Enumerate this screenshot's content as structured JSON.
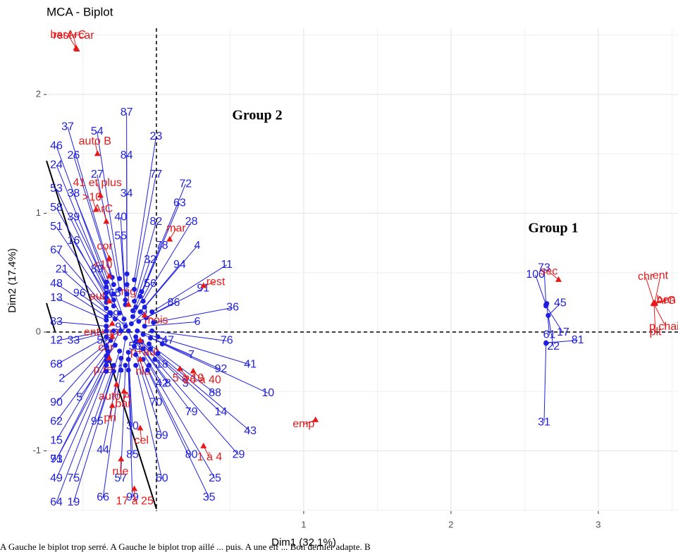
{
  "chart_data": {
    "type": "scatter",
    "title": "MCA - Biplot",
    "x_label": "Dim1 (32.1%)",
    "y_label": "Dim2 (17.4%)",
    "annotations": [
      "Group 2",
      "Group 1"
    ],
    "caption": "A Gauche le biplot trop serré. A Gauche le biplot trop aillé ... puis. A une elf ... Bon dernier adapte. B",
    "xlim": [
      -0.746,
      3.541
    ],
    "ylim": [
      -1.507,
      2.558
    ],
    "xticks": [
      1,
      2,
      3
    ],
    "yticks": [
      -1,
      0,
      1,
      2
    ],
    "minor_xticks": [
      -0.5,
      0.5,
      1.5,
      2.5,
      3.5
    ],
    "minor_yticks": [
      -1.5,
      -0.5,
      0.5,
      1.5,
      2.5
    ],
    "grid": true,
    "reference_lines": {
      "x": 0,
      "y": 0
    },
    "series": [
      {
        "color": "#1f1fdf",
        "marker": "circle",
        "labels": [
          "87",
          "37",
          "54",
          "23",
          "46",
          "26",
          "84",
          "27",
          "77",
          "72",
          "24",
          "53",
          "38",
          "34",
          "63",
          "58",
          "39",
          "40",
          "82",
          "28",
          "51",
          "16",
          "55",
          "78",
          "4",
          "67",
          "21",
          "32",
          "89",
          "94",
          "11",
          "56",
          "91",
          "48",
          "96",
          "65",
          "86",
          "36",
          "13",
          "9",
          "6",
          "83",
          "69",
          "12",
          "33",
          "52",
          "50",
          "47",
          "76",
          "68",
          "7",
          "41",
          "92",
          "18",
          "1",
          "3",
          "2",
          "88",
          "10",
          "90",
          "42",
          "8",
          "5",
          "70",
          "14",
          "79",
          "62",
          "95",
          "30",
          "59",
          "43",
          "15",
          "97",
          "80",
          "71",
          "44",
          "29",
          "93",
          "85",
          "49",
          "75",
          "57",
          "60",
          "25",
          "64",
          "19",
          "66",
          "99",
          "35",
          "73",
          "100",
          "61",
          "45",
          "17",
          "22",
          "31",
          "81"
        ],
        "x": [
          -0.2,
          -0.3,
          -0.25,
          -0.15,
          -0.34,
          -0.29,
          -0.2,
          -0.25,
          -0.15,
          -0.1,
          -0.34,
          -0.34,
          -0.29,
          -0.2,
          -0.11,
          -0.34,
          -0.29,
          -0.21,
          -0.15,
          -0.09,
          -0.34,
          -0.29,
          -0.21,
          -0.14,
          -0.08,
          -0.34,
          -0.31,
          -0.16,
          -0.25,
          -0.11,
          -0.03,
          -0.16,
          -0.07,
          -0.34,
          -0.28,
          -0.22,
          -0.12,
          -0.02,
          -0.34,
          -0.17,
          -0.08,
          -0.34,
          -0.21,
          -0.34,
          -0.29,
          -0.24,
          -0.19,
          -0.13,
          -0.03,
          -0.34,
          -0.09,
          0.01,
          -0.04,
          -0.14,
          -0.21,
          -0.1,
          -0.31,
          -0.05,
          0.04,
          -0.34,
          -0.14,
          -0.13,
          -0.28,
          -0.15,
          -0.04,
          -0.09,
          -0.33,
          -0.25,
          -0.19,
          -0.14,
          0.01,
          -0.34,
          -0.33,
          -0.09,
          -0.34,
          -0.24,
          -0.01,
          -0.32,
          -0.19,
          -0.34,
          -0.29,
          -0.21,
          -0.14,
          -0.05,
          -0.34,
          -0.29,
          -0.24,
          -0.19,
          -0.06,
          2.645,
          2.645,
          2.65,
          2.66,
          2.645,
          2.66,
          2.645,
          2.645
        ],
        "values": [
          0.49,
          0.46,
          0.45,
          0.44,
          0.42,
          0.4,
          0.4,
          0.36,
          0.36,
          0.34,
          0.38,
          0.33,
          0.32,
          0.32,
          0.3,
          0.29,
          0.27,
          0.27,
          0.26,
          0.26,
          0.25,
          0.22,
          0.23,
          0.21,
          0.21,
          0.2,
          0.16,
          0.18,
          0.16,
          0.17,
          0.17,
          0.13,
          0.12,
          0.13,
          0.11,
          0.11,
          0.09,
          0.08,
          0.1,
          0.07,
          0.05,
          0.05,
          0.05,
          0.01,
          0.01,
          0.01,
          0.01,
          0.01,
          0.01,
          -0.04,
          -0.02,
          -0.04,
          -0.05,
          -0.04,
          -0.05,
          -0.08,
          -0.07,
          -0.1,
          -0.1,
          -0.12,
          -0.08,
          -0.08,
          -0.11,
          -0.12,
          -0.14,
          -0.14,
          -0.16,
          -0.16,
          -0.17,
          -0.19,
          -0.18,
          -0.2,
          -0.2,
          -0.23,
          -0.24,
          -0.22,
          -0.23,
          -0.24,
          -0.23,
          -0.28,
          -0.28,
          -0.28,
          -0.28,
          -0.28,
          -0.33,
          -0.33,
          -0.32,
          -0.32,
          -0.32,
          0.23,
          0.23,
          0.24,
          0.14,
          0.22,
          0.14,
          -0.095,
          -0.09
        ]
      },
      {
        "color": "#e41a1c",
        "marker": "triangle",
        "labels": [
          "rest+car",
          "barArC",
          "auto B",
          "41 et plus",
          ">10",
          "ArC",
          "mar",
          "cor",
          "<10",
          "rest",
          "aut",
          "nig",
          "mois",
          "ent+bro",
          "car",
          "p+aut",
          "p.ref",
          "nia",
          "5 à 10",
          "26 à 40",
          "auto A",
          "bar",
          "emp",
          "pri",
          "cel",
          "1 à 4",
          "rue",
          "17 à 25",
          "sec",
          "ArG",
          "ben",
          "p.chair",
          "chr",
          "plt",
          "ent"
        ],
        "x": [
          -0.545,
          -0.54,
          -0.4,
          -0.38,
          -0.41,
          -0.34,
          0.09,
          -0.32,
          -0.32,
          0.32,
          -0.32,
          -0.19,
          -0.08,
          -0.3,
          -0.3,
          -0.11,
          -0.32,
          -0.11,
          0.16,
          0.25,
          -0.27,
          -0.22,
          1.08,
          -0.3,
          -0.11,
          0.32,
          -0.24,
          -0.15,
          2.73,
          3.38,
          3.385,
          3.375,
          3.38,
          3.378,
          3.382
        ],
        "values": [
          2.39,
          2.38,
          1.5,
          1.15,
          1.03,
          0.93,
          0.78,
          0.62,
          0.47,
          0.39,
          0.26,
          0.23,
          0.14,
          0.07,
          -0.04,
          -0.07,
          -0.22,
          -0.23,
          -0.31,
          -0.33,
          -0.44,
          -0.5,
          -0.74,
          -0.62,
          -0.81,
          -0.96,
          -1.07,
          -1.32,
          0.44,
          0.24,
          0.245,
          0.242,
          0.238,
          0.236,
          0.24
        ]
      }
    ]
  }
}
